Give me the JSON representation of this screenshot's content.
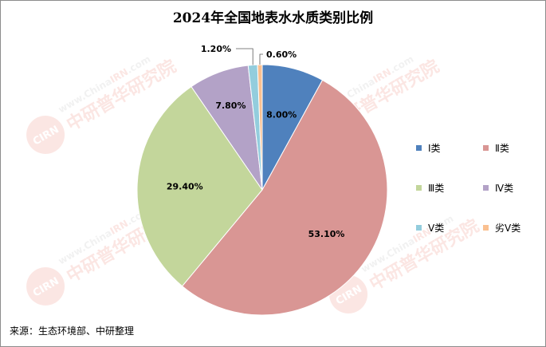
{
  "title": "2024年全国地表水水质类别比例",
  "source": "来源：生态环境部、中研整理",
  "watermark": {
    "url_prefix": "www.China",
    "url_brand": "IRN",
    "url_suffix": ".com",
    "badge": "CIRN",
    "name": "中研普华研究院"
  },
  "chart_data": {
    "type": "pie",
    "title": "2024年全国地表水水质类别比例",
    "categories": [
      "Ⅰ类",
      "Ⅱ类",
      "Ⅲ类",
      "Ⅳ类",
      "Ⅴ类",
      "劣Ⅴ类"
    ],
    "values": [
      8.0,
      53.1,
      29.4,
      7.8,
      1.2,
      0.6
    ],
    "value_labels": [
      "8.00%",
      "53.10%",
      "29.40%",
      "7.80%",
      "1.20%",
      "0.60%"
    ],
    "colors": [
      "#4f81bd",
      "#d99694",
      "#c3d69b",
      "#b3a2c7",
      "#93cddd",
      "#fac090"
    ],
    "legend_position": "right",
    "start_angle": "12 o'clock, clockwise"
  }
}
